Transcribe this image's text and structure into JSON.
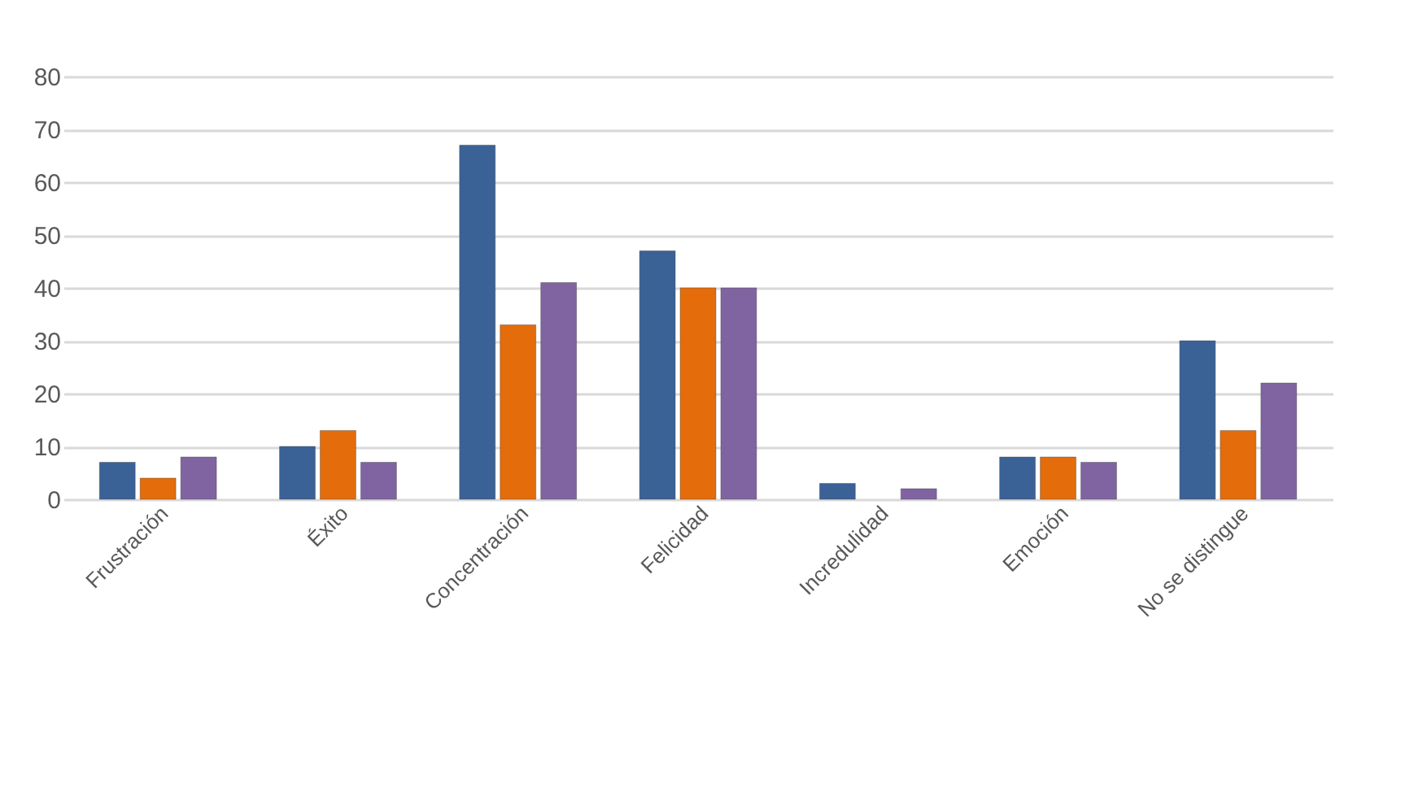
{
  "chart_data": {
    "type": "bar",
    "categories": [
      "Frustración",
      "Éxito",
      "Concentración",
      "Felicidad",
      "Incredulidad",
      "Emoción",
      "No se distingue"
    ],
    "series": [
      {
        "color": "#3a6296",
        "values": [
          7,
          10,
          67,
          47,
          3,
          8,
          30
        ]
      },
      {
        "color": "#e46c0a",
        "values": [
          4,
          13,
          33,
          40,
          null,
          8,
          13
        ]
      },
      {
        "color": "#8064a2",
        "values": [
          8,
          7,
          41,
          40,
          2,
          7,
          22
        ]
      }
    ],
    "ylim": [
      0,
      80
    ],
    "yticks": [
      0,
      10,
      20,
      30,
      40,
      50,
      60,
      70,
      80
    ],
    "grid": "y"
  }
}
